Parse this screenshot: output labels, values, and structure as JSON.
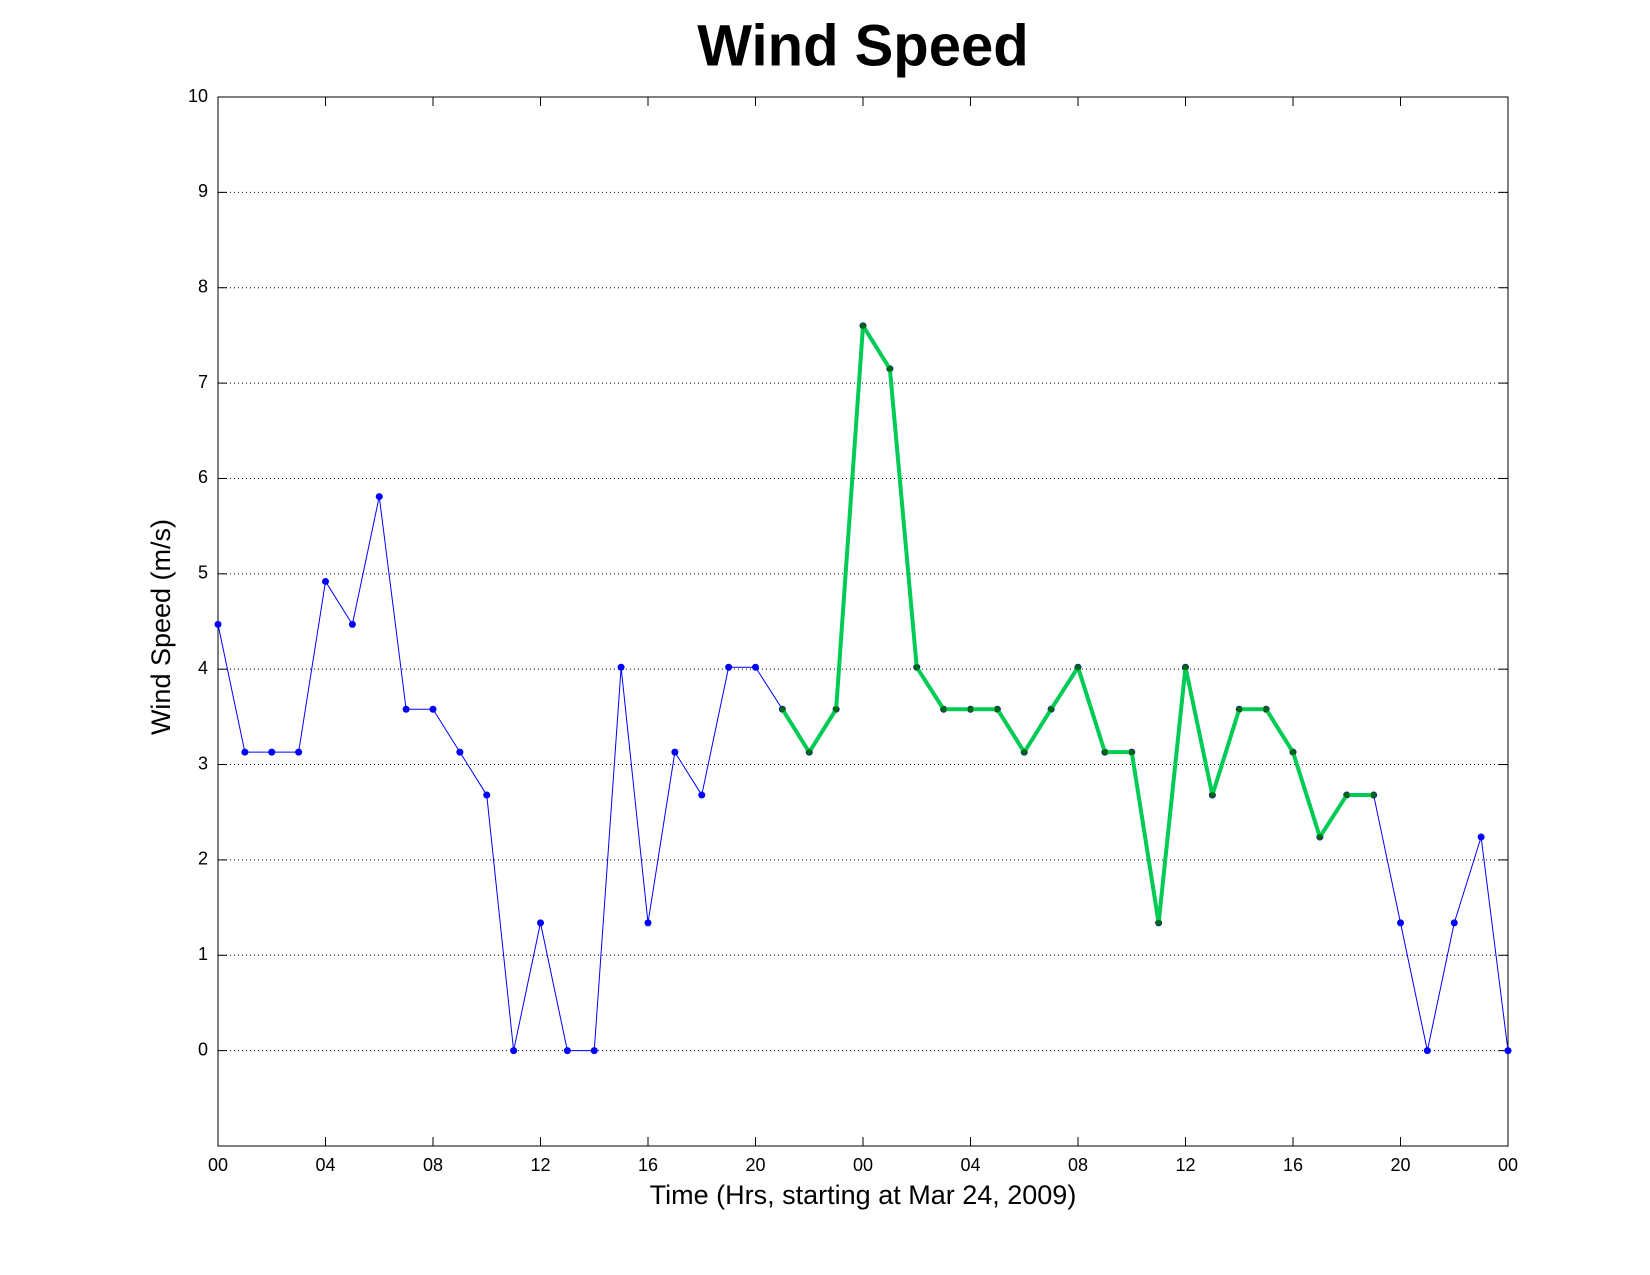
{
  "chart_data": {
    "type": "line",
    "title": "Wind Speed",
    "x_label": "Time (Hrs, starting at Mar 24, 2009)",
    "y_label": "Wind Speed (m/s)",
    "xlim": [
      0,
      48
    ],
    "xticks": [
      {
        "value": 0,
        "label": "00"
      },
      {
        "value": 4,
        "label": "04"
      },
      {
        "value": 8,
        "label": "08"
      },
      {
        "value": 12,
        "label": "12"
      },
      {
        "value": 16,
        "label": "16"
      },
      {
        "value": 20,
        "label": "20"
      },
      {
        "value": 24,
        "label": "00"
      },
      {
        "value": 28,
        "label": "04"
      },
      {
        "value": 32,
        "label": "08"
      },
      {
        "value": 36,
        "label": "12"
      },
      {
        "value": 40,
        "label": "16"
      },
      {
        "value": 44,
        "label": "20"
      },
      {
        "value": 48,
        "label": "00"
      }
    ],
    "ylim": [
      -1,
      10
    ],
    "yticks": [
      0,
      1,
      2,
      3,
      4,
      5,
      6,
      7,
      8,
      9,
      10
    ],
    "grid": true,
    "series": [
      {
        "color": "#0000ff",
        "marker_color": "#0000ff",
        "line_width": 1,
        "x": [
          0,
          1,
          2,
          3,
          4,
          5,
          6,
          7,
          8,
          9,
          10,
          11,
          12,
          13,
          14,
          15,
          16,
          17,
          18,
          19,
          20,
          21,
          22,
          23,
          24,
          25,
          26,
          27,
          28,
          29,
          30,
          31,
          32,
          33,
          34,
          35,
          36,
          37,
          38,
          39,
          40,
          41,
          42,
          43,
          44,
          45,
          46,
          47,
          48
        ],
        "values": [
          4.47,
          3.13,
          3.13,
          3.13,
          4.92,
          4.47,
          5.81,
          3.58,
          3.58,
          3.13,
          2.68,
          0,
          1.34,
          0,
          0,
          4.02,
          1.34,
          3.13,
          2.68,
          4.02,
          4.02,
          3.58,
          3.13,
          3.58,
          7.6,
          7.15,
          4.02,
          3.58,
          3.58,
          3.58,
          3.13,
          3.58,
          4.02,
          3.13,
          3.13,
          1.34,
          4.02,
          2.68,
          3.58,
          3.58,
          3.13,
          2.24,
          2.68,
          2.68,
          1.34,
          0,
          1.34,
          2.24,
          0
        ]
      },
      {
        "color": "#00cc55",
        "marker_color": "#006600",
        "line_width": 4,
        "x": [
          21,
          22,
          23,
          24,
          25,
          26,
          27,
          28,
          29,
          30,
          31,
          32,
          33,
          34,
          35,
          36,
          37,
          38,
          39,
          40,
          41,
          42,
          43
        ],
        "values": [
          3.58,
          3.13,
          3.58,
          7.6,
          7.15,
          4.02,
          3.58,
          3.58,
          3.58,
          3.13,
          3.58,
          4.02,
          3.13,
          3.13,
          1.34,
          4.02,
          2.68,
          3.58,
          3.58,
          3.13,
          2.24,
          2.68,
          2.68
        ]
      }
    ]
  }
}
